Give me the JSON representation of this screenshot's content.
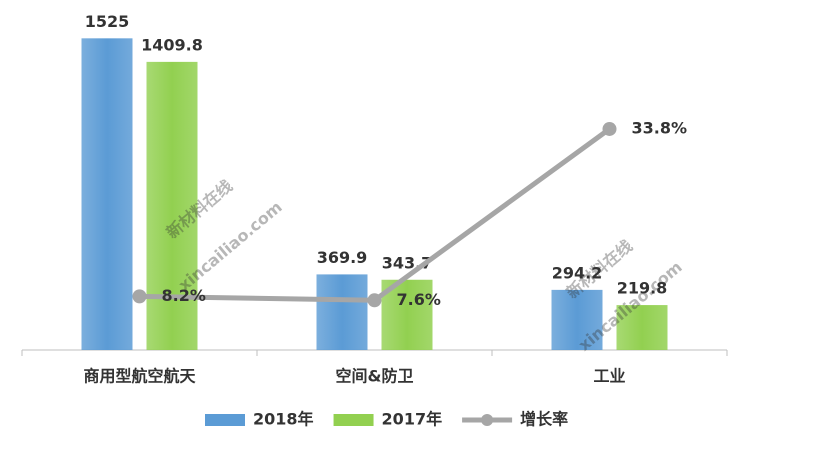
{
  "chart_data": {
    "type": "bar-line",
    "categories": [
      "商用型航空航天",
      "空间&防卫",
      "工业"
    ],
    "series": [
      {
        "name": "2018年",
        "type": "bar",
        "color": "#5b9bd5",
        "values": [
          1525,
          369.9,
          294.2
        ]
      },
      {
        "name": "2017年",
        "type": "bar",
        "color": "#92d050",
        "values": [
          1409.8,
          343.7,
          219.8
        ]
      },
      {
        "name": "增长率",
        "type": "line",
        "axis": "y2",
        "color": "#a6a6a6",
        "values": [
          8.2,
          7.6,
          33.8
        ],
        "value_labels": [
          "8.2%",
          "7.6%",
          "33.8%"
        ],
        "label_color": "#e8191c"
      }
    ],
    "ylim": [
      0,
      1600
    ],
    "y2lim": [
      0,
      50
    ],
    "watermarks": [
      "新材料在线",
      "xincailiao.com"
    ],
    "legend": "bottom"
  }
}
